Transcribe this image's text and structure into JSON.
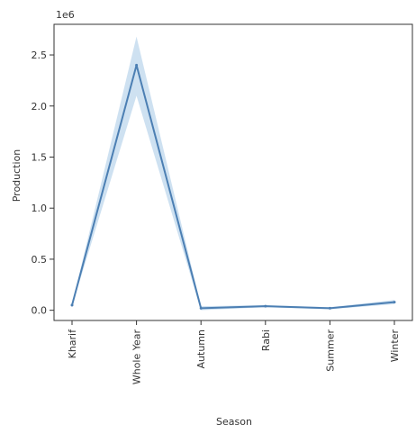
{
  "chart_data": {
    "type": "line",
    "title": "",
    "xlabel": "Season",
    "ylabel": "Production",
    "y_offset_label": "1e6",
    "categories": [
      "Kharif",
      "Whole Year",
      "Autumn",
      "Rabi",
      "Summer",
      "Winter"
    ],
    "y_ticks": [
      "0.0",
      "0.5",
      "1.0",
      "1.5",
      "2.0",
      "2.5"
    ],
    "y_tick_values": [
      0,
      0.5,
      1.0,
      1.5,
      2.0,
      2.5
    ],
    "ylim": [
      -0.1,
      2.8
    ],
    "grid": false,
    "series": [
      {
        "values": [
          0.05,
          2.4,
          0.02,
          0.04,
          0.02,
          0.08
        ],
        "ci_lower": [
          0.04,
          2.1,
          0.0,
          0.03,
          0.01,
          0.06
        ],
        "ci_upper": [
          0.06,
          2.68,
          0.04,
          0.05,
          0.03,
          0.1
        ],
        "color": "#4c7fb3",
        "band_color": "#a6c8e6"
      }
    ],
    "tick_label_rotation": "vertical"
  }
}
